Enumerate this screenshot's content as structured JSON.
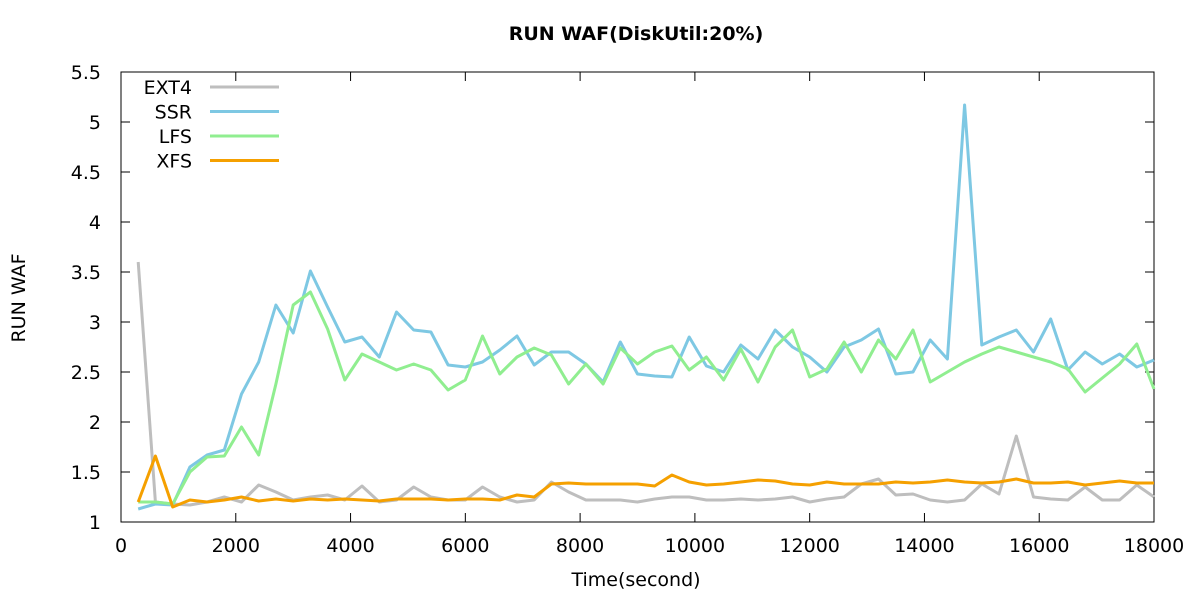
{
  "chart_data": {
    "type": "line",
    "title": "RUN WAF(DiskUtil:20%)",
    "xlabel": "Time(second)",
    "ylabel": "RUN WAF",
    "xlim": [
      0,
      18000
    ],
    "ylim": [
      1,
      5.5
    ],
    "xticks": [
      "0",
      "2000",
      "4000",
      "6000",
      "8000",
      "10000",
      "12000",
      "14000",
      "16000",
      "18000"
    ],
    "yticks": [
      "1",
      "1.5",
      "2",
      "2.5",
      "3",
      "3.5",
      "4",
      "4.5",
      "5",
      "5.5"
    ],
    "legend_position": "top-left",
    "x": [
      300,
      600,
      900,
      1200,
      1500,
      1800,
      2100,
      2400,
      2700,
      3000,
      3300,
      3600,
      3900,
      4200,
      4500,
      4800,
      5100,
      5400,
      5700,
      6000,
      6300,
      6600,
      6900,
      7200,
      7500,
      7800,
      8100,
      8400,
      8700,
      9000,
      9300,
      9600,
      9900,
      10200,
      10500,
      10800,
      11100,
      11400,
      11700,
      12000,
      12300,
      12600,
      12900,
      13200,
      13500,
      13800,
      14100,
      14400,
      14700,
      15000,
      15300,
      15600,
      15900,
      16200,
      16500,
      16800,
      17100,
      17400,
      17700,
      18000
    ],
    "series": [
      {
        "name": "EXT4",
        "color": "#bebebe",
        "values": [
          3.6,
          1.2,
          1.18,
          1.17,
          1.2,
          1.25,
          1.2,
          1.37,
          1.3,
          1.22,
          1.25,
          1.27,
          1.22,
          1.36,
          1.2,
          1.22,
          1.35,
          1.25,
          1.22,
          1.22,
          1.35,
          1.25,
          1.2,
          1.22,
          1.4,
          1.3,
          1.22,
          1.22,
          1.22,
          1.2,
          1.23,
          1.25,
          1.25,
          1.22,
          1.22,
          1.23,
          1.22,
          1.23,
          1.25,
          1.2,
          1.23,
          1.25,
          1.38,
          1.43,
          1.27,
          1.28,
          1.22,
          1.2,
          1.22,
          1.38,
          1.28,
          1.86,
          1.25,
          1.23,
          1.22,
          1.35,
          1.22,
          1.22,
          1.37,
          1.25
        ]
      },
      {
        "name": "SSR",
        "color": "#7ec8e3",
        "values": [
          1.13,
          1.18,
          1.17,
          1.55,
          1.67,
          1.72,
          2.28,
          2.6,
          3.17,
          2.89,
          3.51,
          3.15,
          2.8,
          2.85,
          2.65,
          3.1,
          2.92,
          2.9,
          2.57,
          2.55,
          2.6,
          2.72,
          2.86,
          2.57,
          2.7,
          2.7,
          2.58,
          2.4,
          2.8,
          2.48,
          2.46,
          2.45,
          2.85,
          2.56,
          2.5,
          2.77,
          2.63,
          2.92,
          2.75,
          2.65,
          2.5,
          2.75,
          2.82,
          2.93,
          2.48,
          2.5,
          2.82,
          2.63,
          5.17,
          2.77,
          2.85,
          2.92,
          2.7,
          3.03,
          2.52,
          2.7,
          2.58,
          2.68,
          2.55,
          2.62
        ]
      },
      {
        "name": "LFS",
        "color": "#90ee90",
        "values": [
          1.2,
          1.2,
          1.18,
          1.5,
          1.65,
          1.66,
          1.95,
          1.67,
          2.38,
          3.17,
          3.3,
          2.93,
          2.42,
          2.68,
          2.6,
          2.52,
          2.58,
          2.52,
          2.32,
          2.42,
          2.86,
          2.48,
          2.65,
          2.74,
          2.67,
          2.38,
          2.58,
          2.38,
          2.74,
          2.58,
          2.7,
          2.76,
          2.52,
          2.65,
          2.42,
          2.73,
          2.4,
          2.75,
          2.92,
          2.45,
          2.53,
          2.8,
          2.5,
          2.82,
          2.63,
          2.92,
          2.4,
          2.5,
          2.6,
          2.68,
          2.75,
          2.7,
          2.65,
          2.6,
          2.53,
          2.3,
          2.44,
          2.58,
          2.78,
          2.33
        ]
      },
      {
        "name": "XFS",
        "color": "#f5a000",
        "values": [
          1.2,
          1.66,
          1.15,
          1.22,
          1.2,
          1.22,
          1.25,
          1.21,
          1.23,
          1.21,
          1.23,
          1.22,
          1.23,
          1.22,
          1.21,
          1.23,
          1.23,
          1.23,
          1.22,
          1.23,
          1.23,
          1.22,
          1.27,
          1.25,
          1.38,
          1.39,
          1.38,
          1.38,
          1.38,
          1.38,
          1.36,
          1.47,
          1.4,
          1.37,
          1.38,
          1.4,
          1.42,
          1.41,
          1.38,
          1.37,
          1.4,
          1.38,
          1.38,
          1.38,
          1.4,
          1.39,
          1.4,
          1.42,
          1.4,
          1.39,
          1.4,
          1.43,
          1.39,
          1.39,
          1.4,
          1.37,
          1.39,
          1.41,
          1.39,
          1.39
        ]
      }
    ]
  }
}
